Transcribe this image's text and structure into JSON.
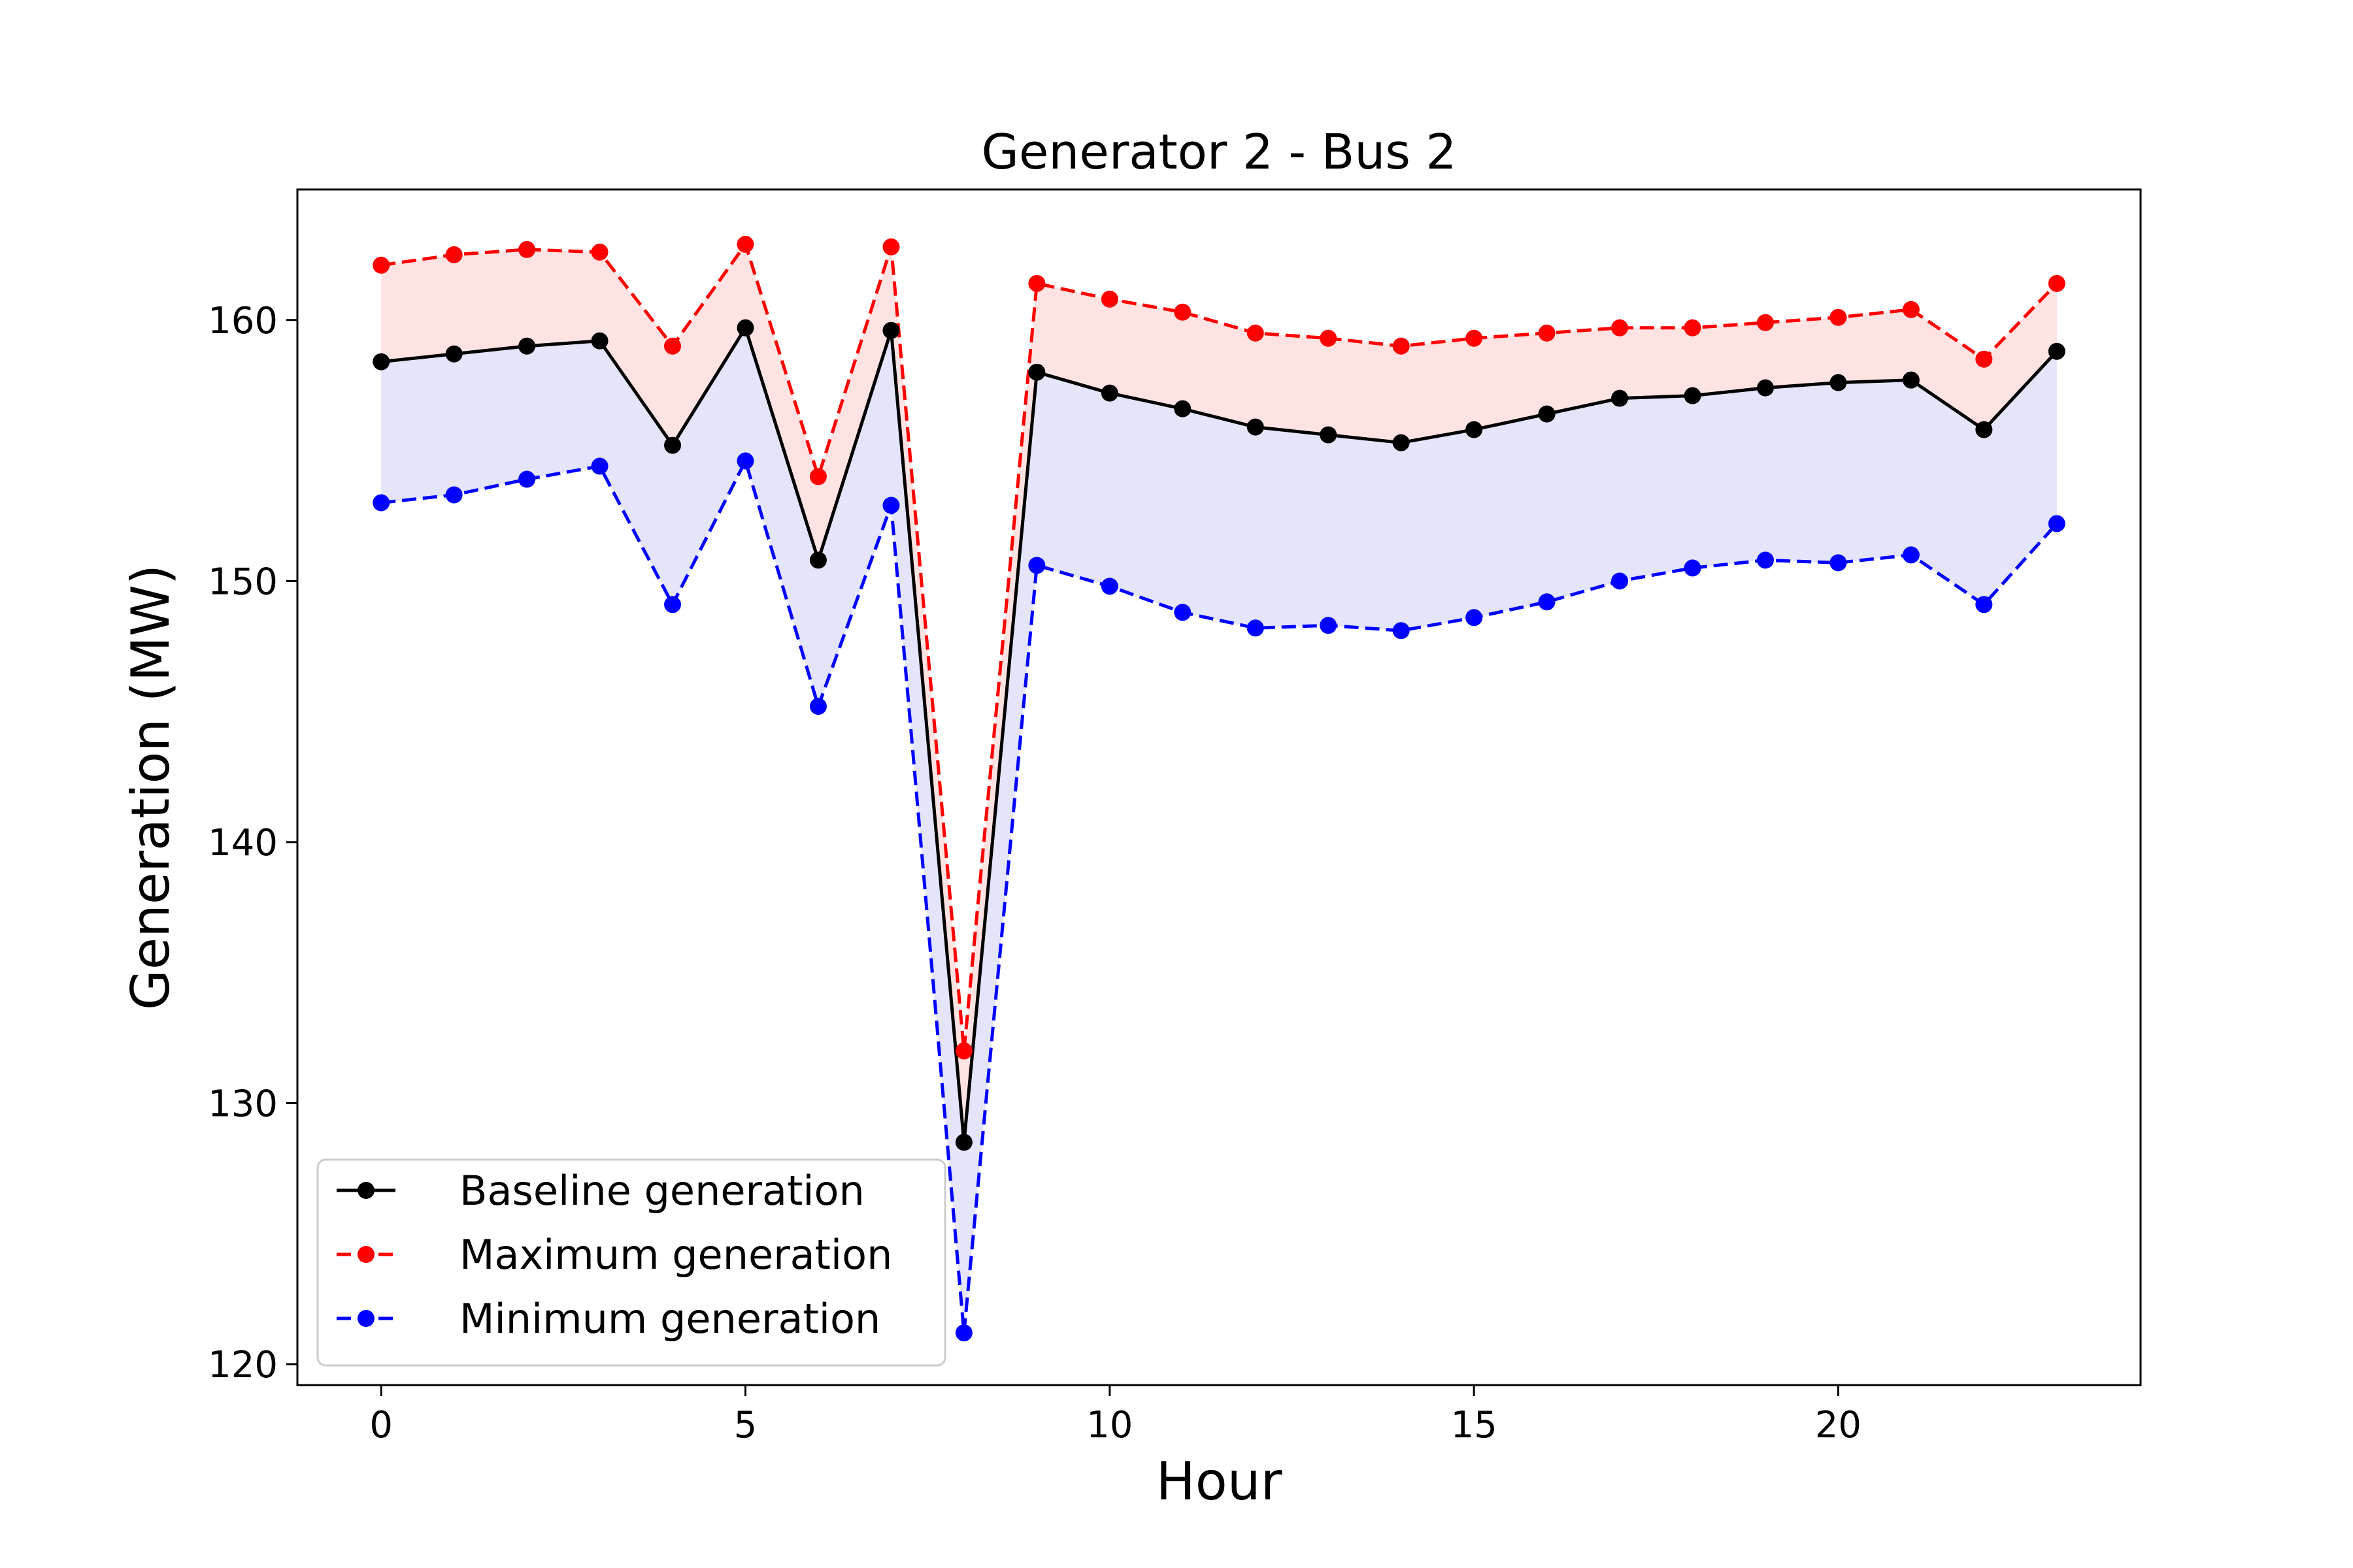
{
  "chart_data": {
    "type": "line",
    "title": "Generator 2 - Bus 2",
    "xlabel": "Hour",
    "ylabel": "Generation (MW)",
    "xlim": [
      -1.15,
      24.15
    ],
    "ylim": [
      119.2,
      165.0
    ],
    "xticks": [
      0,
      5,
      10,
      15,
      20
    ],
    "yticks": [
      120,
      130,
      140,
      150,
      160
    ],
    "grid": false,
    "legend_position": "lower-left",
    "x": [
      0,
      1,
      2,
      3,
      4,
      5,
      6,
      7,
      8,
      9,
      10,
      11,
      12,
      13,
      14,
      15,
      16,
      17,
      18,
      19,
      20,
      21,
      22,
      23
    ],
    "series": [
      {
        "name": "Baseline generation",
        "color": "#000000",
        "linestyle": "solid",
        "values": [
          158.4,
          158.7,
          159.0,
          159.2,
          155.2,
          159.7,
          150.8,
          159.6,
          128.5,
          158.0,
          157.2,
          156.6,
          155.9,
          155.6,
          155.3,
          155.8,
          156.4,
          157.0,
          157.1,
          157.4,
          157.6,
          157.7,
          155.8,
          158.8
        ]
      },
      {
        "name": "Maximum generation",
        "color": "#ff0000",
        "linestyle": "dashed",
        "values": [
          162.1,
          162.5,
          162.7,
          162.6,
          159.0,
          162.9,
          154.0,
          162.8,
          132.0,
          161.4,
          160.8,
          160.3,
          159.5,
          159.3,
          159.0,
          159.3,
          159.5,
          159.7,
          159.7,
          159.9,
          160.1,
          160.4,
          158.5,
          161.4
        ]
      },
      {
        "name": "Minimum generation",
        "color": "#0000ff",
        "linestyle": "dashed",
        "values": [
          153.0,
          153.3,
          153.9,
          154.4,
          149.1,
          154.6,
          145.2,
          152.9,
          121.2,
          150.6,
          149.8,
          148.8,
          148.2,
          148.3,
          148.1,
          148.6,
          149.2,
          150.0,
          150.5,
          150.8,
          150.7,
          151.0,
          149.1,
          152.2
        ]
      }
    ],
    "fills": [
      {
        "between": [
          "Baseline generation",
          "Maximum generation"
        ],
        "color": "#ffe3e3"
      },
      {
        "between": [
          "Minimum generation",
          "Baseline generation"
        ],
        "color": "#e4e4fb"
      }
    ]
  }
}
